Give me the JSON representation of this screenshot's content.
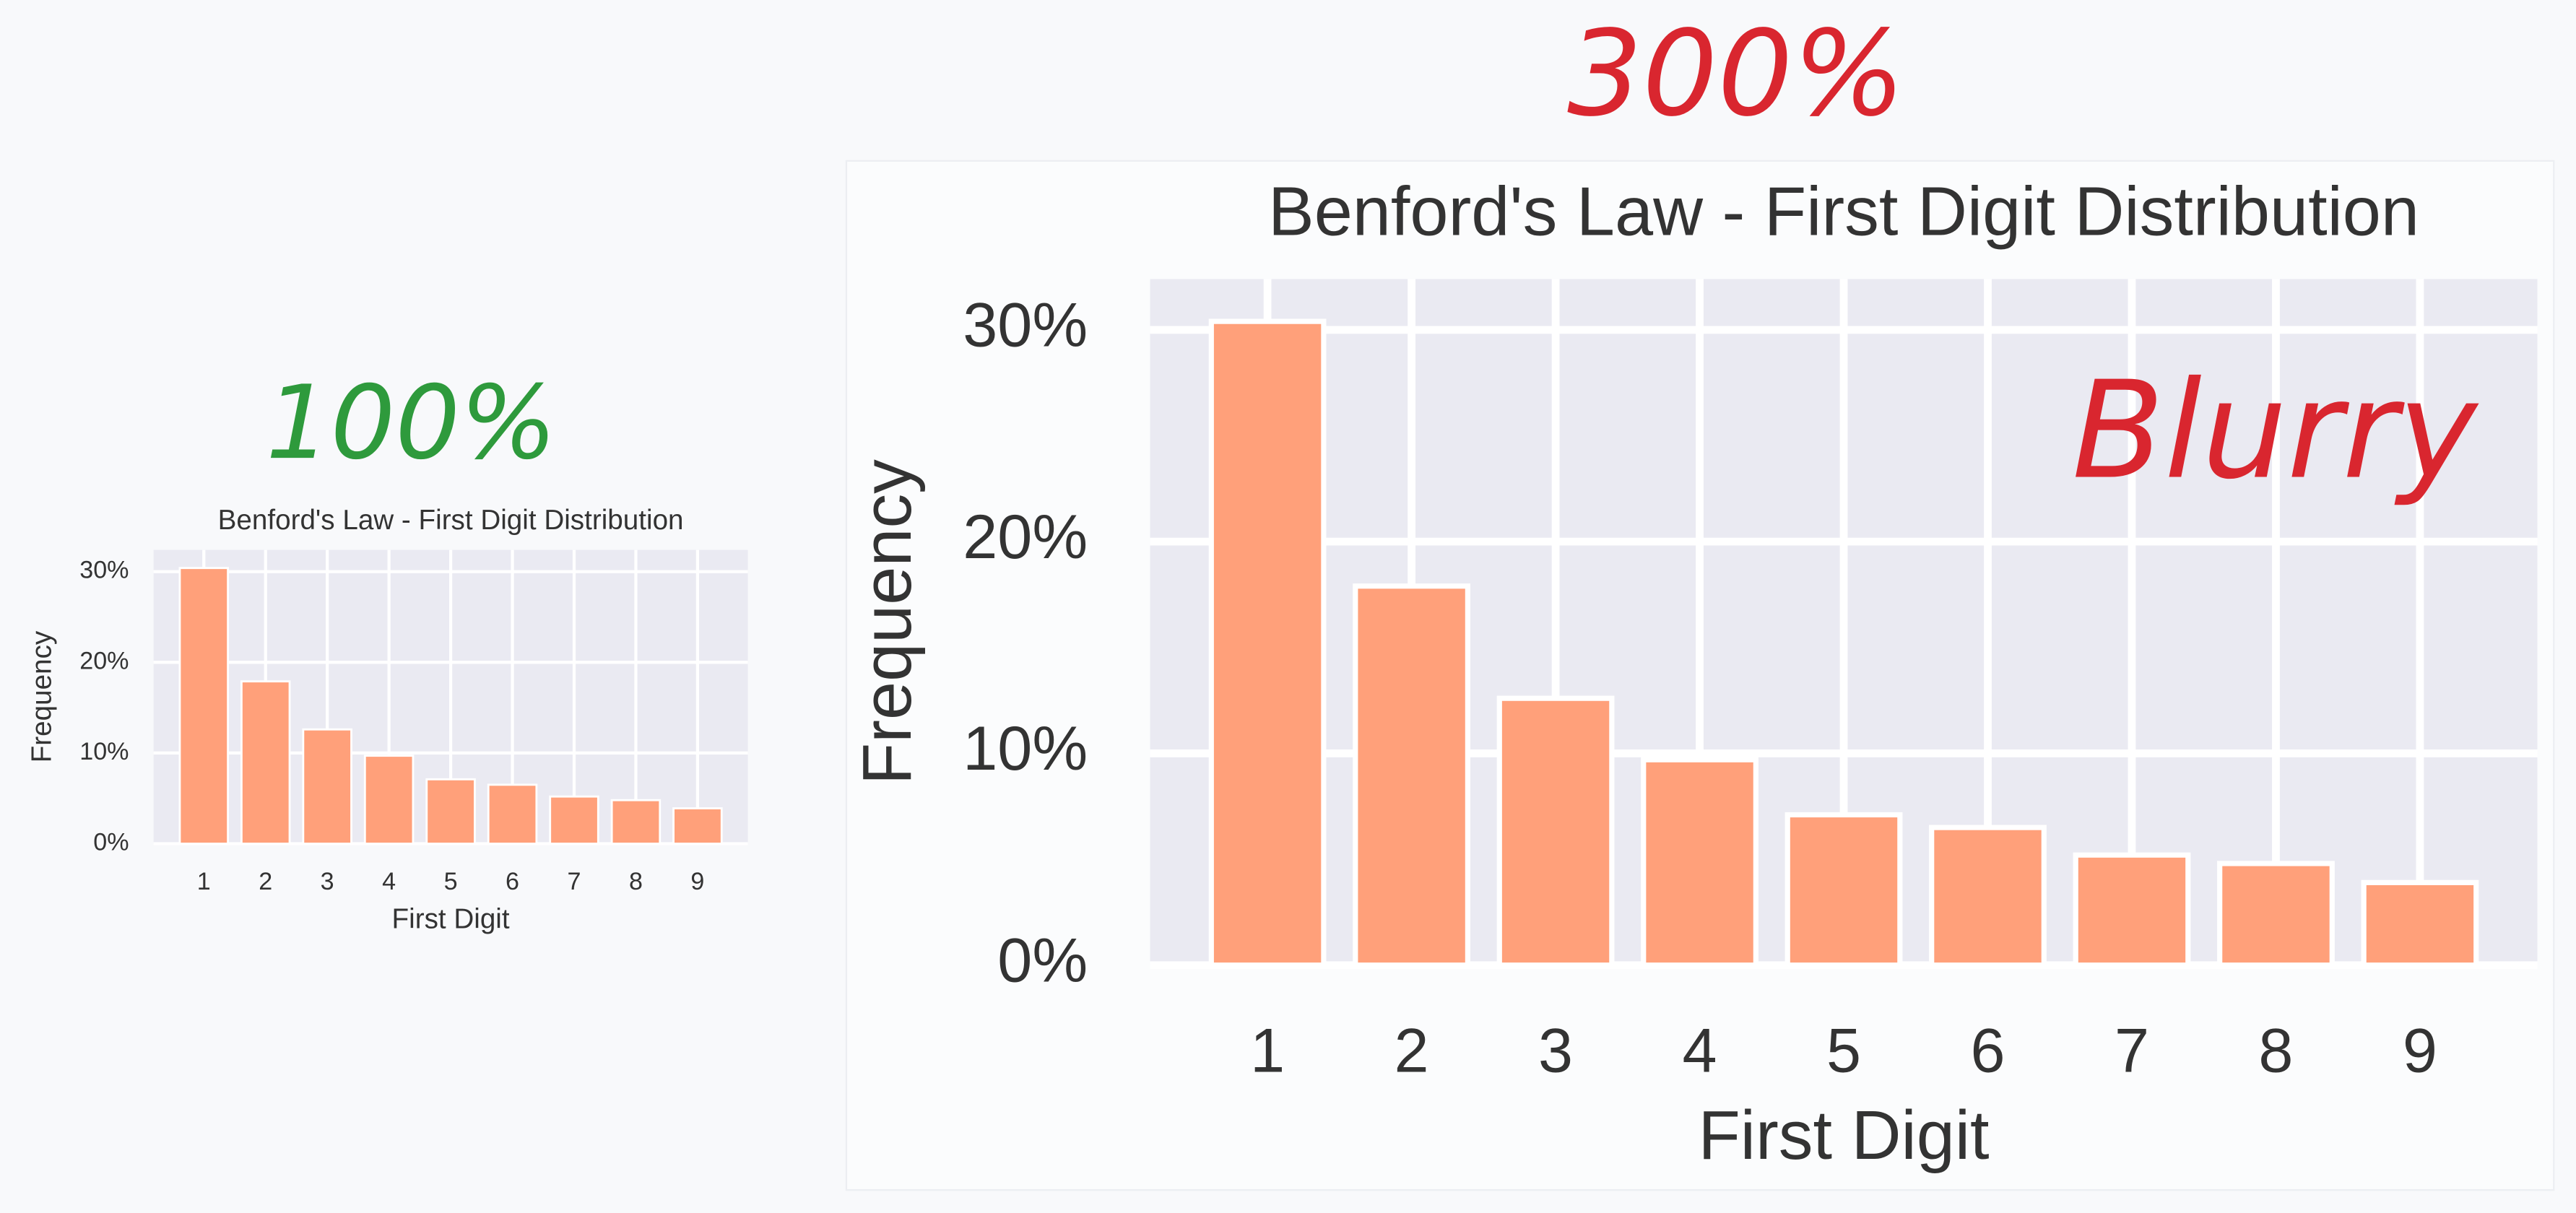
{
  "chart_data": [
    {
      "type": "bar",
      "title": "Benford's Law - First Digit Distribution",
      "x_label": "First Digit",
      "y_label": "Frequency",
      "annotations": [
        "100%"
      ],
      "categories": [
        "1",
        "2",
        "3",
        "4",
        "5",
        "6",
        "7",
        "8",
        "9"
      ],
      "values": [
        30.4,
        17.9,
        12.6,
        9.7,
        7.1,
        6.5,
        5.2,
        4.8,
        3.9
      ],
      "color": "#ffa07a",
      "ylim": [
        0,
        32.4
      ],
      "yticks": [
        {
          "value": 0,
          "label": "0%"
        },
        {
          "value": 10,
          "label": "10%"
        },
        {
          "value": 20,
          "label": "20%"
        },
        {
          "value": 30,
          "label": "30%"
        }
      ],
      "grid": true
    },
    {
      "type": "bar",
      "title": "Benford's Law - First Digit Distribution",
      "x_label": "First Digit",
      "y_label": "Frequency",
      "annotations": [
        "300%",
        "Blurry"
      ],
      "categories": [
        "1",
        "2",
        "3",
        "4",
        "5",
        "6",
        "7",
        "8",
        "9"
      ],
      "values": [
        30.4,
        17.9,
        12.6,
        9.7,
        7.1,
        6.5,
        5.2,
        4.8,
        3.9
      ],
      "color": "#ffa07a",
      "ylim": [
        0,
        32.4
      ],
      "yticks": [
        {
          "value": 0,
          "label": "0%"
        },
        {
          "value": 10,
          "label": "10%"
        },
        {
          "value": 20,
          "label": "20%"
        },
        {
          "value": 30,
          "label": "30%"
        }
      ],
      "grid": true
    }
  ]
}
